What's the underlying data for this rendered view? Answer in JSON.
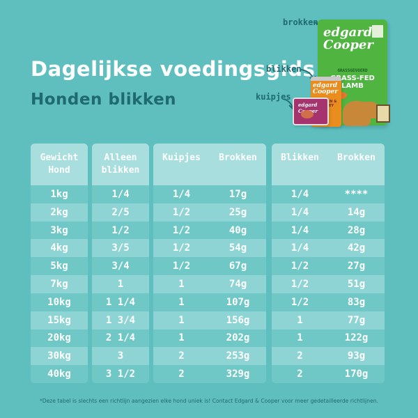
{
  "header": {
    "title": "Dagelijkse voedingsgids",
    "subtitle": "Honden blikken"
  },
  "product_tags": {
    "brokken": "brokken",
    "blikken": "blikken",
    "kuipjes": "kuipjes"
  },
  "products": {
    "bag_brand": "edgard Cooper",
    "bag_variety": "GRASSGEVOERD",
    "bag_label": "GRASS-FED LAMB",
    "can_brand": "edgard Cooper",
    "can_label": "CHICKEN & TURKEY",
    "tray_brand": "edgard Cooper"
  },
  "table": {
    "weight": {
      "headers": [
        "Gewicht\nHond"
      ],
      "rows": [
        "1kg",
        "2kg",
        "3kg",
        "4kg",
        "5kg",
        "7kg",
        "10kg",
        "15kg",
        "20kg",
        "30kg",
        "40kg"
      ]
    },
    "alone": {
      "headers": [
        "Alleen\nblikken"
      ],
      "rows": [
        "1/4",
        "2/5",
        "1/2",
        "3/5",
        "3/4",
        "1",
        "1 1/4",
        "1 3/4",
        "2 1/4",
        "3",
        "3 1/2"
      ]
    },
    "mix_tubs": {
      "headers": [
        "Kuipjes",
        "Brokken"
      ],
      "rows": [
        [
          "1/4",
          "17g"
        ],
        [
          "1/2",
          "25g"
        ],
        [
          "1/2",
          "40g"
        ],
        [
          "1/2",
          "54g"
        ],
        [
          "1/2",
          "67g"
        ],
        [
          "1",
          "74g"
        ],
        [
          "1",
          "107g"
        ],
        [
          "1",
          "156g"
        ],
        [
          "1",
          "202g"
        ],
        [
          "2",
          "253g"
        ],
        [
          "2",
          "329g"
        ]
      ]
    },
    "mix_cans": {
      "headers": [
        "Blikken",
        "Brokken"
      ],
      "rows": [
        [
          "1/4",
          "****"
        ],
        [
          "1/4",
          "14g"
        ],
        [
          "1/4",
          "28g"
        ],
        [
          "1/4",
          "42g"
        ],
        [
          "1/2",
          "27g"
        ],
        [
          "1/2",
          "51g"
        ],
        [
          "1/2",
          "83g"
        ],
        [
          "1",
          "77g"
        ],
        [
          "1",
          "122g"
        ],
        [
          "2",
          "93g"
        ],
        [
          "2",
          "170g"
        ]
      ]
    }
  },
  "footnote": "*Deze tabel is slechts een richtlijn aangezien elke hond uniek is! Contact Edgard & Cooper voor meer gedetailleerde richtlijnen.",
  "colors": {
    "background": "#5fbfbf",
    "accent_dark": "#1e6a70",
    "row_dark": "#6fc8c6",
    "row_light": "#8fd4d4",
    "header": "#a8dedd"
  }
}
